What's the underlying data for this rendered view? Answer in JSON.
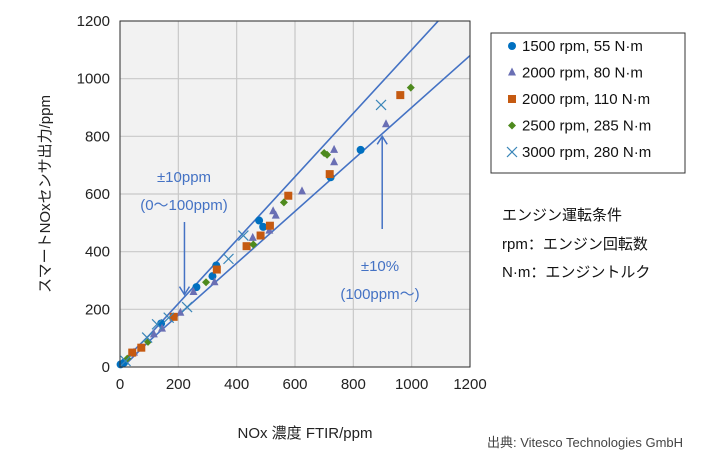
{
  "chart_data": {
    "type": "scatter",
    "xlabel": "NOx 濃度  FTIR/ppm",
    "ylabel": "スマートNOxセンサ出力/ppm",
    "xlim": [
      0,
      1200
    ],
    "ylim": [
      0,
      1200
    ],
    "xticks": [
      0,
      200,
      400,
      600,
      800,
      1000,
      1200
    ],
    "yticks": [
      0,
      200,
      400,
      600,
      800,
      1000,
      1200
    ],
    "grid": true,
    "legend_position": "top-right",
    "plot_background": "#f2f2f2",
    "tolerance_line_color": "#4472c4",
    "tolerance_lines": [
      {
        "points": [
          [
            0,
            10
          ],
          [
            100,
            110
          ],
          [
            1200,
            1320
          ]
        ]
      },
      {
        "points": [
          [
            0,
            -10
          ],
          [
            100,
            90
          ],
          [
            1200,
            1080
          ]
        ]
      }
    ],
    "annotations": [
      {
        "lines": [
          "±10ppm",
          "(0〜100ppm)"
        ],
        "arrow_to": [
          221,
          251
        ]
      },
      {
        "lines": [
          "±10%",
          "(100ppm〜)"
        ],
        "arrow_to": [
          899,
          800
        ]
      }
    ],
    "series": [
      {
        "name": "1500 rpm, 55 N·m",
        "marker": "circle",
        "color": "#0070c0",
        "points": [
          [
            825,
            753
          ],
          [
            722,
            658
          ],
          [
            477,
            508
          ],
          [
            491,
            486
          ],
          [
            330,
            352
          ],
          [
            317,
            315
          ],
          [
            262,
            277
          ],
          [
            141,
            151
          ],
          [
            14,
            15
          ],
          [
            2,
            9
          ]
        ]
      },
      {
        "name": "2000 rpm, 80 N·m",
        "marker": "triangle",
        "color": "#6a6fb4",
        "points": [
          [
            912,
            842
          ],
          [
            734,
            753
          ],
          [
            734,
            710
          ],
          [
            624,
            609
          ],
          [
            525,
            540
          ],
          [
            534,
            525
          ],
          [
            455,
            448
          ],
          [
            512,
            473
          ],
          [
            324,
            294
          ],
          [
            252,
            260
          ],
          [
            207,
            188
          ],
          [
            144,
            133
          ],
          [
            116,
            113
          ],
          [
            48,
            50
          ]
        ]
      },
      {
        "name": "2000 rpm, 110 N·m",
        "marker": "square",
        "color": "#c55a11",
        "points": [
          [
            961,
            943
          ],
          [
            719,
            669
          ],
          [
            577,
            594
          ],
          [
            514,
            490
          ],
          [
            482,
            456
          ],
          [
            434,
            419
          ],
          [
            332,
            338
          ],
          [
            184,
            174
          ],
          [
            73,
            67
          ],
          [
            42,
            50
          ]
        ]
      },
      {
        "name": "2500 rpm, 285 N·m",
        "marker": "diamond",
        "color": "#4e8a1e",
        "points": [
          [
            997,
            969
          ],
          [
            700,
            742
          ],
          [
            710,
            736
          ],
          [
            562,
            571
          ],
          [
            457,
            425
          ],
          [
            295,
            294
          ],
          [
            96,
            87
          ],
          [
            25,
            29
          ]
        ]
      },
      {
        "name": "3000 rpm, 280 N·m",
        "marker": "cross",
        "color": "#3a86b8",
        "points": [
          [
            895,
            909
          ],
          [
            423,
            456
          ],
          [
            372,
            375
          ],
          [
            230,
            208
          ],
          [
            167,
            171
          ],
          [
            127,
            148
          ],
          [
            93,
            102
          ],
          [
            19,
            21
          ]
        ]
      }
    ]
  },
  "notes": {
    "title": "エンジン運転条件",
    "rpm": "rpm：エンジン回転数",
    "nm": "N·m：エンジントルク"
  },
  "source": "出典: Vitesco Technologies GmbH"
}
